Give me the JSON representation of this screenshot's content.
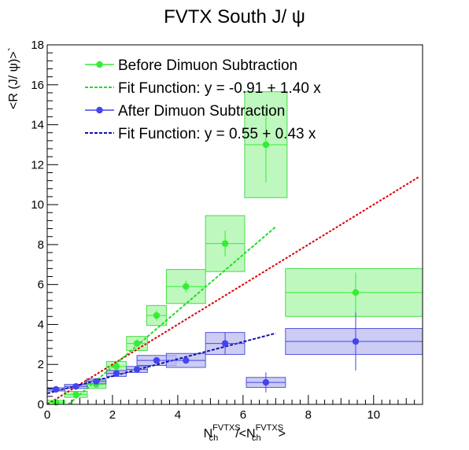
{
  "chart_data": {
    "type": "scatter",
    "title": "FVTX South J/ ψ",
    "xlabel": {
      "main": "N",
      "sub": "ch",
      "sup": "FVTXS",
      "middle": "/<N",
      "sub2": "ch",
      "sup2": "FVTXS",
      "end": ">"
    },
    "ylabel": "<R (J/ ψ)>`",
    "xlim": [
      0,
      11.5
    ],
    "ylim": [
      0,
      18
    ],
    "x_ticks": [
      "0",
      "2",
      "4",
      "6",
      "8",
      "10"
    ],
    "x_tick_values": [
      0,
      2,
      4,
      6,
      8,
      10
    ],
    "y_ticks": [
      "0",
      "2",
      "4",
      "6",
      "8",
      "10",
      "12",
      "14",
      "16",
      "18"
    ],
    "y_tick_values": [
      0,
      2,
      4,
      6,
      8,
      10,
      12,
      14,
      16,
      18
    ],
    "legend_position": "top-left",
    "series": [
      {
        "name": "Before Dimuon Subtraction",
        "color": "#33ee33",
        "box_fill": "#aaf5aa",
        "box_edge": "#44dd44",
        "points": [
          {
            "x": 0.27,
            "y": 0.1,
            "xerr": 0.27,
            "yerr": 0.05,
            "sys": 0.1
          },
          {
            "x": 0.88,
            "y": 0.5,
            "xerr": 0.35,
            "yerr": 0.1,
            "sys": 0.15
          },
          {
            "x": 1.5,
            "y": 1.0,
            "xerr": 0.3,
            "yerr": 0.1,
            "sys": 0.2
          },
          {
            "x": 2.12,
            "y": 1.9,
            "xerr": 0.3,
            "yerr": 0.15,
            "sys": 0.25
          },
          {
            "x": 2.75,
            "y": 3.05,
            "xerr": 0.32,
            "yerr": 0.2,
            "sys": 0.35
          },
          {
            "x": 3.35,
            "y": 4.45,
            "xerr": 0.3,
            "yerr": 0.25,
            "sys": 0.5
          },
          {
            "x": 4.25,
            "y": 5.9,
            "xerr": 0.6,
            "yerr": 0.3,
            "sys": 0.85
          },
          {
            "x": 5.45,
            "y": 8.05,
            "xerr": 0.6,
            "yerr": 0.65,
            "sys": 1.4
          },
          {
            "x": 6.7,
            "y": 13.0,
            "xerr": 0.65,
            "yerr": 1.9,
            "sys": 2.65
          },
          {
            "x": 9.45,
            "y": 5.6,
            "xerr": 2.15,
            "yerr": 1.0,
            "sys": 1.2
          }
        ]
      },
      {
        "name": "After Dimuon Subtraction",
        "color": "#4444ee",
        "box_fill": "#bbbbf0",
        "box_edge": "#5555dd",
        "points": [
          {
            "x": 0.27,
            "y": 0.75,
            "xerr": 0.27,
            "yerr": 0.05,
            "sys": 0.08
          },
          {
            "x": 0.88,
            "y": 0.9,
            "xerr": 0.35,
            "yerr": 0.05,
            "sys": 0.1
          },
          {
            "x": 1.5,
            "y": 1.15,
            "xerr": 0.3,
            "yerr": 0.05,
            "sys": 0.12
          },
          {
            "x": 2.12,
            "y": 1.55,
            "xerr": 0.3,
            "yerr": 0.1,
            "sys": 0.15
          },
          {
            "x": 2.75,
            "y": 1.75,
            "xerr": 0.32,
            "yerr": 0.1,
            "sys": 0.15
          },
          {
            "x": 3.35,
            "y": 2.2,
            "xerr": 0.6,
            "yerr": 0.1,
            "sys": 0.25
          },
          {
            "x": 4.25,
            "y": 2.2,
            "xerr": 0.6,
            "yerr": 0.15,
            "sys": 0.35
          },
          {
            "x": 5.45,
            "y": 3.05,
            "xerr": 0.6,
            "yerr": 0.55,
            "sys": 0.55
          },
          {
            "x": 6.7,
            "y": 1.1,
            "xerr": 0.6,
            "yerr": 0.5,
            "sys": 0.25
          },
          {
            "x": 9.45,
            "y": 3.15,
            "xerr": 2.15,
            "yerr": 1.45,
            "sys": 0.65
          }
        ]
      }
    ],
    "fits": [
      {
        "name": "Fit Function: y = -0.91 + 1.40 x",
        "color": "#22dd22",
        "intercept": -0.91,
        "slope": 1.4,
        "x_range": [
          0.55,
          7.0
        ]
      },
      {
        "name": "Fit Function: y = 0.55 + 0.43 x",
        "color": "#1111aa",
        "intercept": 0.55,
        "slope": 0.43,
        "x_range": [
          0.0,
          7.0
        ]
      }
    ],
    "extra_lines": [
      {
        "color": "#dd0000",
        "intercept": 0.0,
        "slope": 1.0,
        "x_range": [
          0.0,
          11.4
        ]
      }
    ]
  }
}
